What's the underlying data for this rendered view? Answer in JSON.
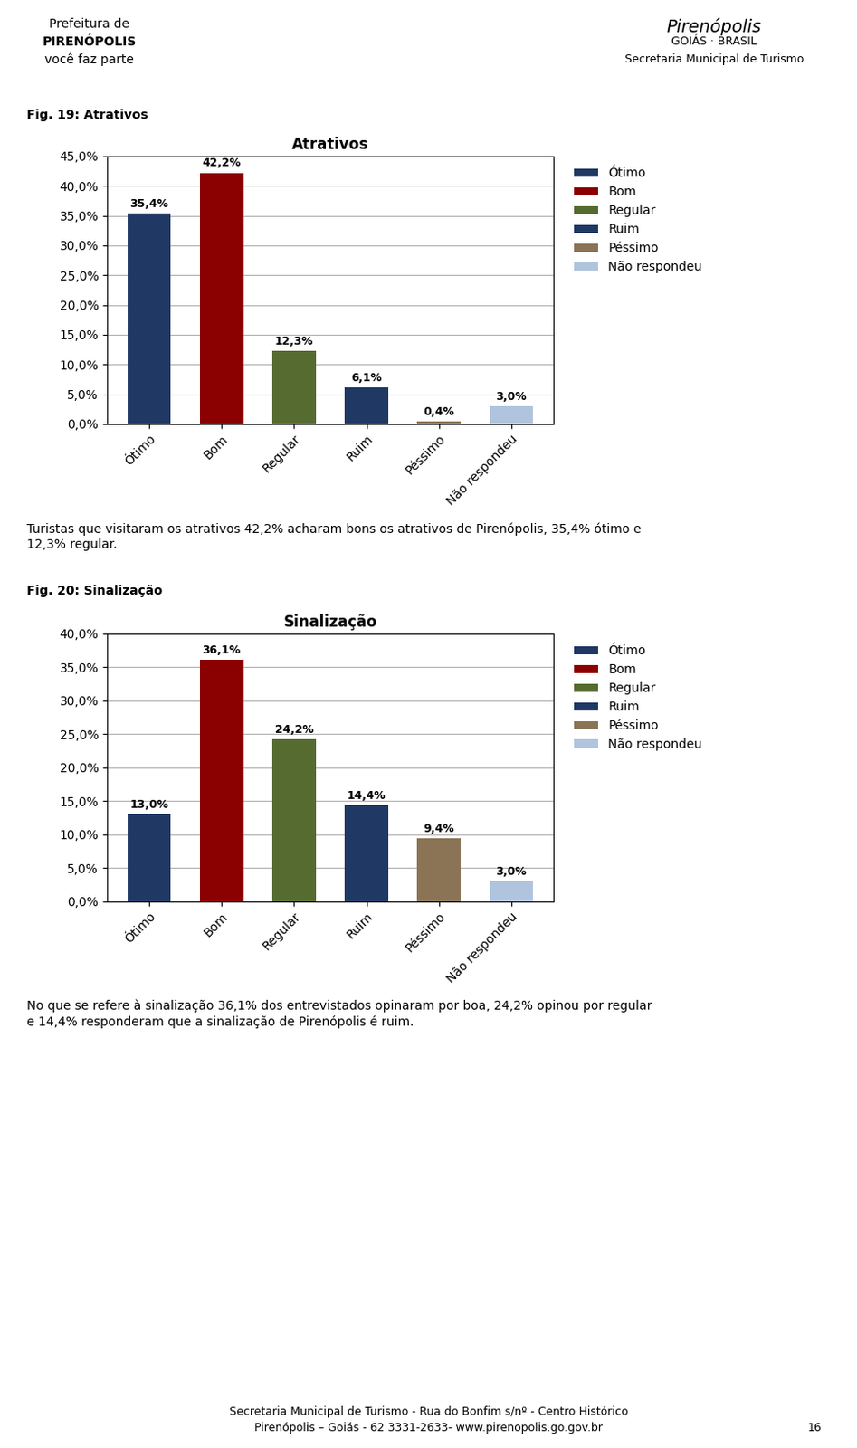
{
  "chart_data": [
    {
      "type": "bar",
      "title": "Atrativos",
      "categories": [
        "Ótimo",
        "Bom",
        "Regular",
        "Ruim",
        "Péssimo",
        "Não respondeu"
      ],
      "values": [
        35.4,
        42.2,
        12.3,
        6.1,
        0.4,
        3.0
      ],
      "value_labels": [
        "35,4%",
        "42,2%",
        "12,3%",
        "6,1%",
        "0,4%",
        "3,0%"
      ],
      "colors": [
        "#1F3864",
        "#8B0000",
        "#556B2F",
        "#1F3864",
        "#8B7355",
        "#B0C4DE"
      ],
      "ylim": [
        0,
        45
      ],
      "yticks": [
        {
          "value": 0.0,
          "label": "0,0%"
        },
        {
          "value": 5.0,
          "label": "5,0%"
        },
        {
          "value": 10.0,
          "label": "10,0%"
        },
        {
          "value": 15.0,
          "label": "15,0%"
        },
        {
          "value": 20.0,
          "label": "20,0%"
        },
        {
          "value": 25.0,
          "label": "25,0%"
        },
        {
          "value": 30.0,
          "label": "30,0%"
        },
        {
          "value": 35.0,
          "label": "35,0%"
        },
        {
          "value": 40.0,
          "label": "40,0%"
        },
        {
          "value": 45.0,
          "label": "45,0%"
        }
      ],
      "grid": true,
      "legend": "upper left",
      "data_labels": true,
      "annotations": [
        "Fig. 19: Atrativos",
        "Turistas que visitaram os atrativos 42,2% acharam bons os atrativos de Pirenópolis, 35,4% ótimo e",
        "12,3% regular."
      ]
    },
    {
      "type": "bar",
      "title": "Sinalização",
      "categories": [
        "Ótimo",
        "Bom",
        "Regular",
        "Ruim",
        "Péssimo",
        "Não respondeu"
      ],
      "values": [
        13.0,
        36.1,
        24.2,
        14.4,
        9.4,
        3.0
      ],
      "value_labels": [
        "13,0%",
        "36,1%",
        "24,2%",
        "14,4%",
        "9,4%",
        "3,0%"
      ],
      "colors": [
        "#1F3864",
        "#8B0000",
        "#556B2F",
        "#1F3864",
        "#8B7355",
        "#B0C4DE"
      ],
      "ylim": [
        0,
        40
      ],
      "yticks": [
        {
          "value": 0.0,
          "label": "0,0%"
        },
        {
          "value": 5.0,
          "label": "5,0%"
        },
        {
          "value": 10.0,
          "label": "10,0%"
        },
        {
          "value": 15.0,
          "label": "15,0%"
        },
        {
          "value": 20.0,
          "label": "20,0%"
        },
        {
          "value": 25.0,
          "label": "25,0%"
        },
        {
          "value": 30.0,
          "label": "30,0%"
        },
        {
          "value": 35.0,
          "label": "35,0%"
        },
        {
          "value": 40.0,
          "label": "40,0%"
        }
      ],
      "grid": true,
      "legend": "upper left",
      "data_labels": true,
      "annotations": [
        "Fig. 20: Sinalização",
        "No que se refere à sinalização 36,1% dos entrevistados opinaram por boa, 24,2% opinou por regular",
        "e 14,4% responderam que a sinalização de Pirenópolis é ruim."
      ]
    }
  ],
  "annotations": [
    "Prefeitura de",
    "PIRENÓPOLIS",
    "você faz parte",
    "Pirenópolis",
    "GOIÁS · BRASIL",
    "Secretaria Municipal de Turismo",
    "Secretaria Municipal de Turismo - Rua do Bonfim s/nº - Centro Histórico",
    "Pirenópolis – Goiás - 62 3331-2633- www.pirenopolis.go.gov.br",
    "16"
  ]
}
